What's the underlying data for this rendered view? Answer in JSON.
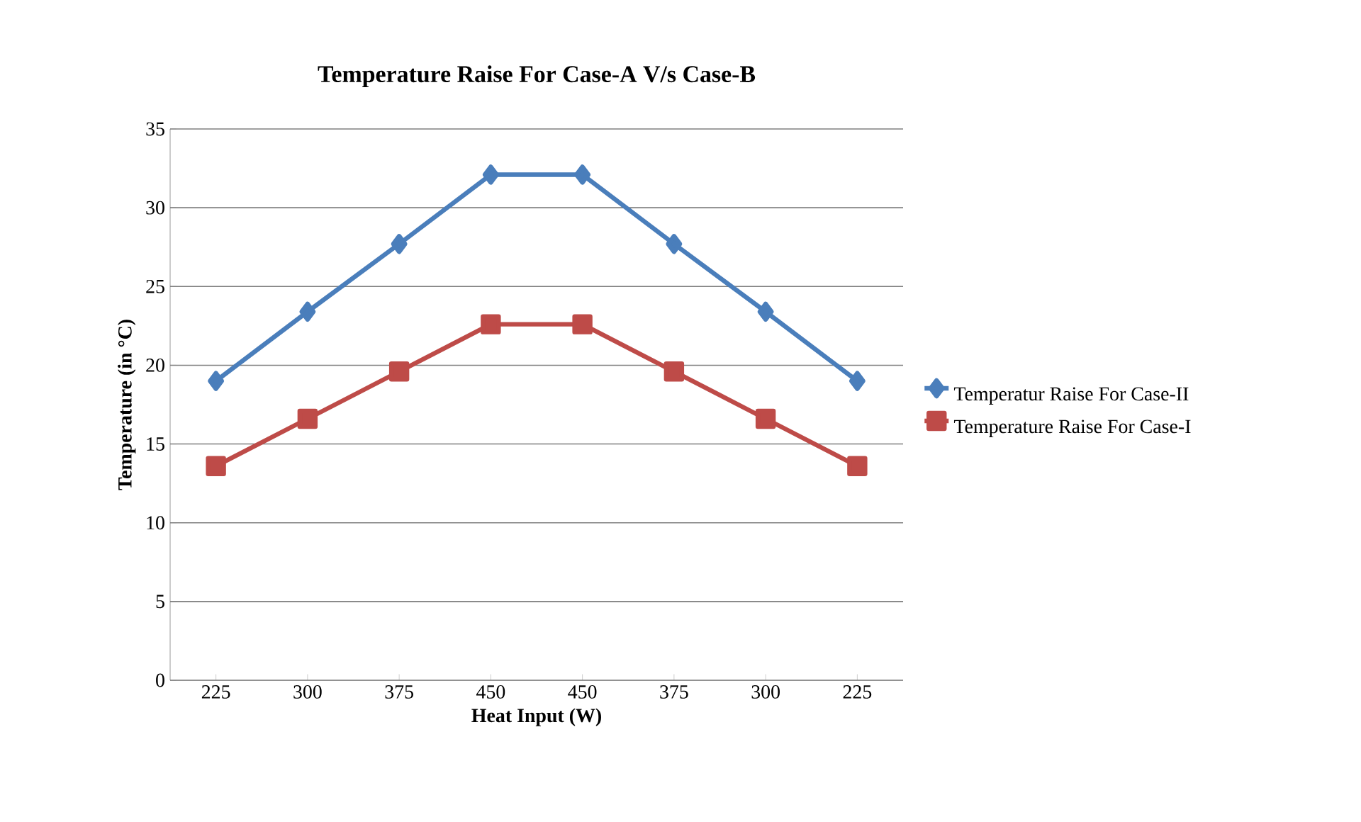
{
  "chart_data": {
    "type": "line",
    "title": "Temperature Raise For Case-A V/s Case-B",
    "xlabel": "Heat Input (W)",
    "ylabel": "Temperature (in °C)",
    "categories": [
      "225",
      "300",
      "375",
      "450",
      "450",
      "375",
      "300",
      "225"
    ],
    "series": [
      {
        "name": "Temperatur Raise For Case-II",
        "color": "#4a7ebb",
        "marker": "diamond",
        "values": [
          19.0,
          23.4,
          27.7,
          32.1,
          32.1,
          27.7,
          23.4,
          19.0
        ]
      },
      {
        "name": "Temperature Raise For Case-I",
        "color": "#be4b48",
        "marker": "square",
        "values": [
          13.6,
          16.6,
          19.6,
          22.6,
          22.6,
          19.6,
          16.6,
          13.6
        ]
      }
    ],
    "ylim": [
      0,
      35
    ],
    "yticks": [
      0,
      5,
      10,
      15,
      20,
      25,
      30,
      35
    ],
    "grid": "y",
    "legend": "right",
    "line_style": "solid"
  }
}
